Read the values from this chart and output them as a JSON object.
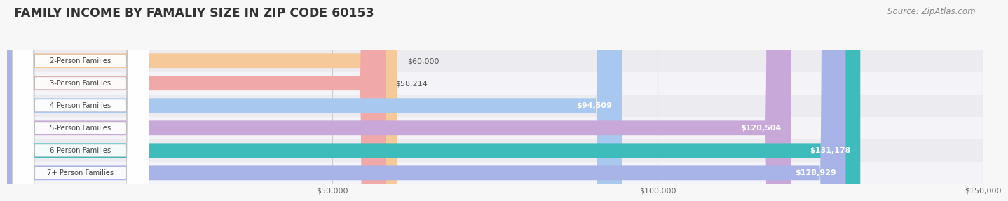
{
  "title": "FAMILY INCOME BY FAMALIY SIZE IN ZIP CODE 60153",
  "source": "Source: ZipAtlas.com",
  "categories": [
    "2-Person Families",
    "3-Person Families",
    "4-Person Families",
    "5-Person Families",
    "6-Person Families",
    "7+ Person Families"
  ],
  "values": [
    60000,
    58214,
    94509,
    120504,
    131178,
    128929
  ],
  "labels": [
    "$60,000",
    "$58,214",
    "$94,509",
    "$120,504",
    "$131,178",
    "$128,929"
  ],
  "bar_colors": [
    "#f5c99a",
    "#f0a8a8",
    "#a8c8f0",
    "#c8a8d8",
    "#3ebcbc",
    "#a8b4e8"
  ],
  "bar_edge_colors": [
    "#e8a060",
    "#e07878",
    "#78a8e0",
    "#a878c0",
    "#2a9898",
    "#8898d0"
  ],
  "row_bg_colors": [
    "#ebebf0",
    "#f4f4f8",
    "#ebebf0",
    "#f4f4f8",
    "#ebebf0",
    "#f4f4f8"
  ],
  "xlim": [
    0,
    150000
  ],
  "xticks": [
    50000,
    100000,
    150000
  ],
  "xtick_labels": [
    "$50,000",
    "$100,000",
    "$150,000"
  ],
  "background_color": "#f7f7f7",
  "title_fontsize": 12.5,
  "source_fontsize": 8.5,
  "bar_height": 0.65,
  "label_threshold": 80000
}
